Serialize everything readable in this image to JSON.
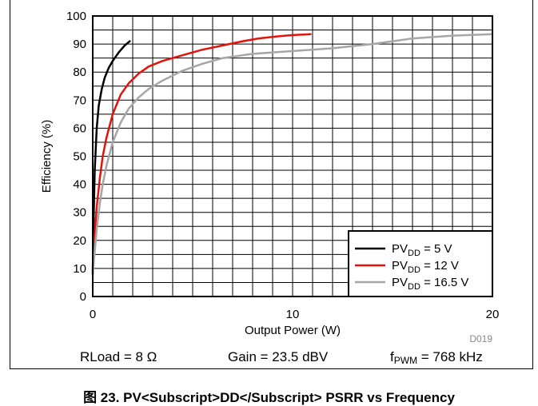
{
  "chart_data": {
    "type": "line",
    "title": "",
    "xlabel": "Output Power (W)",
    "ylabel": "Efficiency (%)",
    "xlim": [
      0,
      20
    ],
    "ylim": [
      0,
      100
    ],
    "x_ticks": [
      "0",
      "10",
      "20"
    ],
    "y_ticks": [
      "0",
      "10",
      "20",
      "30",
      "40",
      "50",
      "60",
      "70",
      "80",
      "90",
      "100"
    ],
    "grid": true,
    "legend_position": "bottom-right",
    "series": [
      {
        "name": "PV_DD = 5 V",
        "name_main": "PV",
        "name_sub": "DD",
        "name_rest": " = 5 V",
        "color": "#000000",
        "x": [
          0,
          0.05,
          0.1,
          0.2,
          0.3,
          0.45,
          0.6,
          0.8,
          1.0,
          1.3,
          1.6,
          1.85
        ],
        "y": [
          8,
          30,
          45,
          60,
          68,
          74,
          78,
          81.5,
          84,
          87,
          89.5,
          91
        ]
      },
      {
        "name": "PV_DD = 12 V",
        "name_main": "PV",
        "name_sub": "DD",
        "name_rest": " = 12 V",
        "color": "#e3120b",
        "x": [
          0,
          0.1,
          0.2,
          0.35,
          0.5,
          0.7,
          1.0,
          1.4,
          1.8,
          2.3,
          2.8,
          3.5,
          4.5,
          5.5,
          6.5,
          7.5,
          8.3,
          9.2,
          10,
          10.9
        ],
        "y": [
          10,
          22,
          32,
          42,
          50,
          57,
          65,
          72,
          76,
          79.5,
          82,
          84,
          86,
          88,
          89.5,
          91,
          92,
          92.7,
          93.2,
          93.5
        ]
      },
      {
        "name": "PV_DD = 16.5 V",
        "name_main": "PV",
        "name_sub": "DD",
        "name_rest": " = 16.5 V",
        "color": "#a6a6a6",
        "x": [
          0,
          0.1,
          0.2,
          0.35,
          0.5,
          0.7,
          1.0,
          1.4,
          1.8,
          2.3,
          2.8,
          3.5,
          4.5,
          5.5,
          6.5,
          8,
          10,
          12,
          14,
          16,
          18,
          20
        ],
        "y": [
          8,
          16,
          24,
          33,
          40,
          47,
          55,
          62,
          67,
          71,
          74,
          77,
          80.5,
          83,
          85,
          86.5,
          87.5,
          88.5,
          90,
          92,
          93,
          93.5
        ]
      }
    ],
    "source_code": "D019"
  },
  "conditions": {
    "rload": "RLoad = 8 Ω",
    "gain": "Gain = 23.5 dBV",
    "fpwm_main": "f",
    "fpwm_sub": "PWM",
    "fpwm_rest": " = 768 kHz"
  },
  "caption": "图 23. PV<Subscript>DD</Subscript> PSRR vs Frequency"
}
